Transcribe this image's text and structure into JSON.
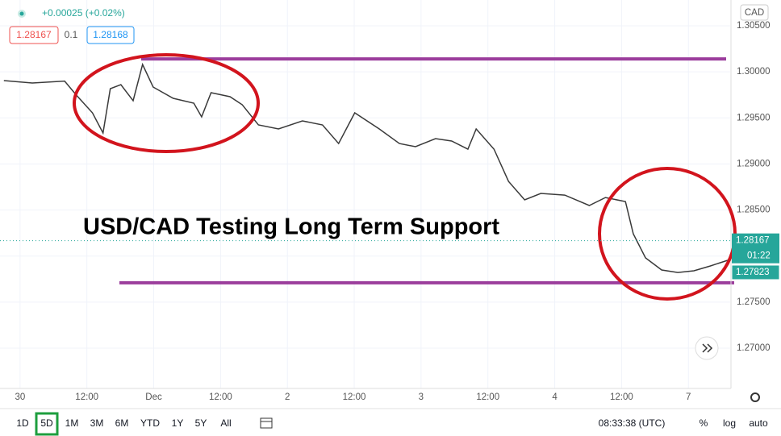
{
  "header": {
    "change": "+0.00025 (+0.02%)",
    "bid": "1.28167",
    "spread": "0.1",
    "ask": "1.28168",
    "currency": "CAD"
  },
  "chart_data": {
    "type": "line",
    "title": "USD/CAD Testing Long Term Support",
    "color": "#3a3a3a",
    "x": [
      -2.9,
      2.2,
      8,
      10.1,
      13,
      14.9,
      16.2,
      18.1,
      20.3,
      22,
      23.9,
      27.5,
      31.2,
      32.6,
      34.3,
      37.7,
      39.9,
      42.8,
      46.4,
      50.7,
      54.3,
      57.2,
      60.1,
      64.5,
      68.1,
      71,
      74.6,
      77.5,
      80.4,
      81.9,
      85.1,
      87.7,
      90.6,
      93.5,
      97.8,
      102.2,
      105.1,
      108.7,
      110.1,
      112.3,
      115.2,
      118.1,
      121,
      123.9,
      127.5
    ],
    "values": [
      1.29905,
      1.29879,
      1.299,
      1.29748,
      1.29555,
      1.29336,
      1.29817,
      1.29861,
      1.29686,
      1.3008,
      1.29835,
      1.29713,
      1.2966,
      1.29511,
      1.29774,
      1.2973,
      1.29643,
      1.29424,
      1.2938,
      1.29468,
      1.29424,
      1.29222,
      1.29555,
      1.2938,
      1.29222,
      1.29188,
      1.29275,
      1.29249,
      1.29161,
      1.2938,
      1.29161,
      1.28811,
      1.2861,
      1.2868,
      1.28662,
      1.28549,
      1.28636,
      1.28592,
      1.28242,
      1.2798,
      1.27849,
      1.27822,
      1.2784,
      1.27892,
      1.27963
    ],
    "xlim": [
      -3.6,
      127.5
    ],
    "ylim": [
      1.26563,
      1.3078
    ],
    "xticks": [
      {
        "value": 0,
        "label": "30"
      },
      {
        "value": 12,
        "label": "12:00"
      },
      {
        "value": 24,
        "label": "Dec"
      },
      {
        "value": 36,
        "label": "12:00"
      },
      {
        "value": 48,
        "label": "2"
      },
      {
        "value": 60,
        "label": "12:00"
      },
      {
        "value": 72,
        "label": "3"
      },
      {
        "value": 84,
        "label": "12:00"
      },
      {
        "value": 96,
        "label": "4"
      },
      {
        "value": 108,
        "label": "12:00"
      },
      {
        "value": 120,
        "label": "7"
      }
    ],
    "yticks": [
      {
        "value": 1.305,
        "label": "1.30500"
      },
      {
        "value": 1.3,
        "label": "1.30000"
      },
      {
        "value": 1.295,
        "label": "1.29500"
      },
      {
        "value": 1.29,
        "label": "1.29000"
      },
      {
        "value": 1.285,
        "label": "1.28500"
      },
      {
        "value": 1.28,
        "label": "1.28000"
      },
      {
        "value": 1.275,
        "label": "1.27500"
      },
      {
        "value": 1.27,
        "label": "1.27000"
      }
    ],
    "grid": true,
    "hlines": [
      {
        "value": 1.3014,
        "color": "#9b3d9c"
      },
      {
        "value": 1.2771,
        "color": "#9b3d9c"
      }
    ],
    "last_price": 1.28167,
    "countdown": "01:22",
    "low_price": 1.27823
  },
  "toolbar": {
    "ranges": [
      "1D",
      "5D",
      "1M",
      "3M",
      "6M",
      "YTD",
      "1Y",
      "5Y",
      "All"
    ],
    "active": 1,
    "time": "08:33:38 (UTC)",
    "options": [
      "%",
      "log",
      "auto"
    ]
  }
}
